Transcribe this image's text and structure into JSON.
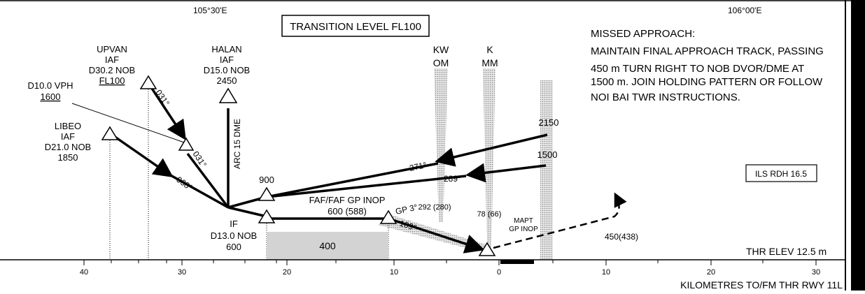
{
  "coords": {
    "lon_left": "105°30'E",
    "lon_right": "106°00'E"
  },
  "transition_level": "TRANSITION LEVEL FL100",
  "missed_approach": {
    "title": "MISSED APPROACH:",
    "lines": [
      "MAINTAIN FINAL APPROACH TRACK, PASSING",
      "450 m TURN RIGHT TO NOB DVOR/DME AT",
      "1500 m. JOIN HOLDING PATTERN OR FOLLOW",
      "NOI BAI TWR INSTRUCTIONS."
    ]
  },
  "fixes": {
    "upvan": [
      "UPVAN",
      "IAF",
      "D30.2 NOB",
      "FL100"
    ],
    "halan": [
      "HALAN",
      "IAF",
      "D15.0 NOB",
      "2450"
    ],
    "d10": [
      "D10.0 VPH",
      "1600"
    ],
    "libeo": [
      "LIBEO",
      "IAF",
      "D21.0 NOB",
      "1850"
    ],
    "if_fix": [
      "IF",
      "D13.0 NOB",
      "600"
    ],
    "faf": [
      "FAF/FAF GP INOP",
      "600 (588)"
    ],
    "mapt": [
      "MAPT",
      "GP INOP"
    ]
  },
  "markers": {
    "kw": [
      "KW",
      "OM"
    ],
    "k": [
      "K",
      "MM"
    ],
    "om_height": "292 (280)",
    "mm_height": "78 (66)"
  },
  "tracks": {
    "t031a": "031°",
    "t031b": "031°",
    "t068": "068°",
    "arc": "ARC 15 DME",
    "t271": "271°",
    "t289": "289°",
    "gp": "GP 3°",
    "t109": "109°"
  },
  "altitudes": {
    "a900": "900",
    "a2150": "2150",
    "a1500": "1500",
    "a400": "400",
    "a450": "450(438)"
  },
  "ils_rdh": "ILS RDH  16.5",
  "thr_elev": "THR ELEV 12.5 m",
  "axis": {
    "ticks": [
      "40",
      "30",
      "20",
      "10",
      "0",
      "10",
      "20",
      "30"
    ],
    "label": "KILOMETRES TO/FM THR RWY 11L"
  }
}
